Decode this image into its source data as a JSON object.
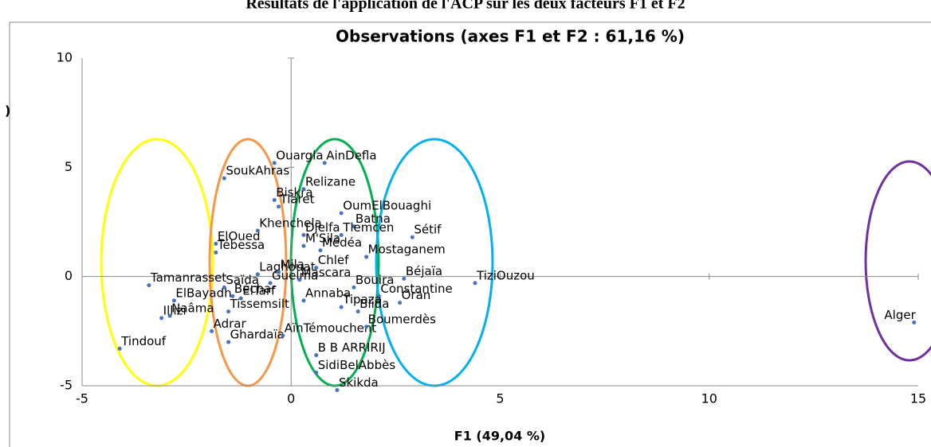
{
  "chart_data": {
    "type": "scatter",
    "top_title": "Résultats de l'application de l'ACP sur les deux facteurs F1 et F2",
    "title": "Observations (axes F1 et F2 : 61,16 %)",
    "x_label": "F1 (49,04 %)",
    "y_label": ")",
    "xlim": [
      -5,
      15
    ],
    "ylim": [
      -5,
      10
    ],
    "xticks": [
      -5,
      0,
      5,
      10,
      15
    ],
    "yticks": [
      -5,
      0,
      5,
      10
    ],
    "color": "#4472c4",
    "series": [
      {
        "name": "Observations",
        "labels": [
          "Tamanrasset",
          "ElBayadh",
          "Naâma",
          "Illizi",
          "Tindouf",
          "Adrar",
          "Ghardaïa",
          "Tissemsilt",
          "AïnTémouchent",
          "Saïda",
          "Béchar",
          "ElTarf",
          "Guelma",
          "Laghouat",
          "Mila",
          "Mascara",
          "Chlef",
          "Tébessa",
          "ElOued",
          "Khenchela",
          "Biskra",
          "SoukAhras",
          "Ouargla",
          "AinDefla",
          "Relizane",
          "Tiaret",
          "OumElBouaghi",
          "Batna",
          "Djelfa",
          "Tlemcen",
          "M'Sila",
          "Médéa",
          "Mostaganem",
          "Sétif",
          "Bouira",
          "Béjaïa",
          "Constantine",
          "Oran",
          "TiziOuzou",
          "Annaba",
          "Tipaza",
          "Blida",
          "Boumerdès",
          "B B ARRIRIJ",
          "SidiBelAbbès",
          "Skikda",
          "Alger"
        ],
        "x": [
          -3.4,
          -2.8,
          -2.9,
          -3.1,
          -4.1,
          -1.9,
          -1.5,
          -1.5,
          -0.2,
          -1.6,
          -1.4,
          -1.2,
          -0.5,
          -0.8,
          -0.3,
          0.2,
          0.6,
          -1.8,
          -1.8,
          -0.8,
          -0.4,
          -1.6,
          -0.4,
          0.8,
          0.3,
          -0.3,
          1.2,
          1.5,
          0.3,
          1.2,
          0.3,
          0.7,
          1.8,
          2.9,
          1.5,
          2.7,
          2.1,
          2.6,
          4.4,
          0.3,
          1.2,
          1.6,
          1.8,
          0.6,
          0.6,
          1.1,
          14.9
        ],
        "values": [
          -0.4,
          -1.1,
          -1.8,
          -1.9,
          -3.3,
          -2.5,
          -3.0,
          -1.6,
          -2.7,
          -0.5,
          -0.9,
          -1.0,
          -0.3,
          0.1,
          0.2,
          -0.15,
          0.4,
          1.1,
          1.5,
          2.1,
          3.5,
          4.5,
          5.2,
          5.2,
          4.0,
          3.2,
          2.9,
          2.3,
          1.9,
          1.9,
          1.4,
          1.2,
          0.9,
          1.8,
          -0.5,
          -0.1,
          -0.9,
          -1.2,
          -0.3,
          -1.1,
          -1.4,
          -1.6,
          -2.3,
          -3.6,
          -4.4,
          -5.2,
          -2.1
        ]
      }
    ]
  }
}
